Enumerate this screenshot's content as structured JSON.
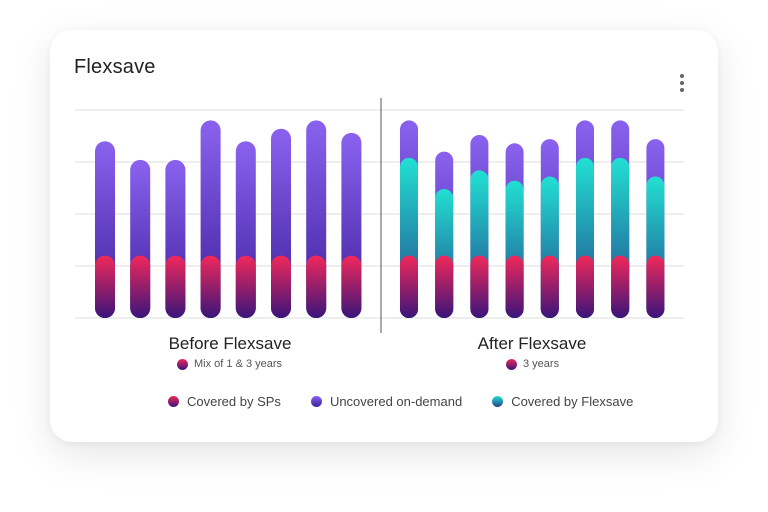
{
  "card": {
    "title": "Flexsave",
    "menu_icon": "more-vert-icon"
  },
  "colors": {
    "covered_sps": [
      "#f0285a",
      "#3a157a"
    ],
    "uncovered_on_demand": [
      "#8a62ef",
      "#3c1f9a"
    ],
    "covered_flexsave": [
      "#21e0d2",
      "#24428a"
    ],
    "gridline": "#e4e4e4",
    "divider": "#555555"
  },
  "chart_data": {
    "type": "bar",
    "stacked": true,
    "title": "Flexsave",
    "ylim": [
      0,
      100
    ],
    "grid": true,
    "y_gridlines": [
      0,
      25,
      50,
      75,
      100
    ],
    "legend_position": "bottom",
    "legend": [
      "Covered by SPs",
      "Uncovered on-demand",
      "Covered by Flexsave"
    ],
    "groups": [
      {
        "label": "Before Flexsave",
        "sublabel": "Mix of 1 & 3 years",
        "series": [
          {
            "name": "Covered by SPs",
            "values": [
              30,
              30,
              30,
              30,
              30,
              30,
              30,
              30
            ]
          },
          {
            "name": "Covered by Flexsave",
            "values": [
              0,
              0,
              0,
              0,
              0,
              0,
              0,
              0
            ]
          },
          {
            "name": "Uncovered on-demand",
            "values": [
              55,
              46,
              46,
              65,
              55,
              61,
              65,
              59
            ]
          }
        ]
      },
      {
        "label": "After Flexsave",
        "sublabel": "3 years",
        "series": [
          {
            "name": "Covered by SPs",
            "values": [
              30,
              30,
              30,
              30,
              30,
              30,
              30,
              30
            ]
          },
          {
            "name": "Covered by Flexsave",
            "values": [
              47,
              32,
              41,
              36,
              38,
              47,
              47,
              38
            ]
          },
          {
            "name": "Uncovered on-demand",
            "values": [
              18,
              18,
              17,
              18,
              18,
              18,
              18,
              18
            ]
          }
        ]
      }
    ]
  }
}
